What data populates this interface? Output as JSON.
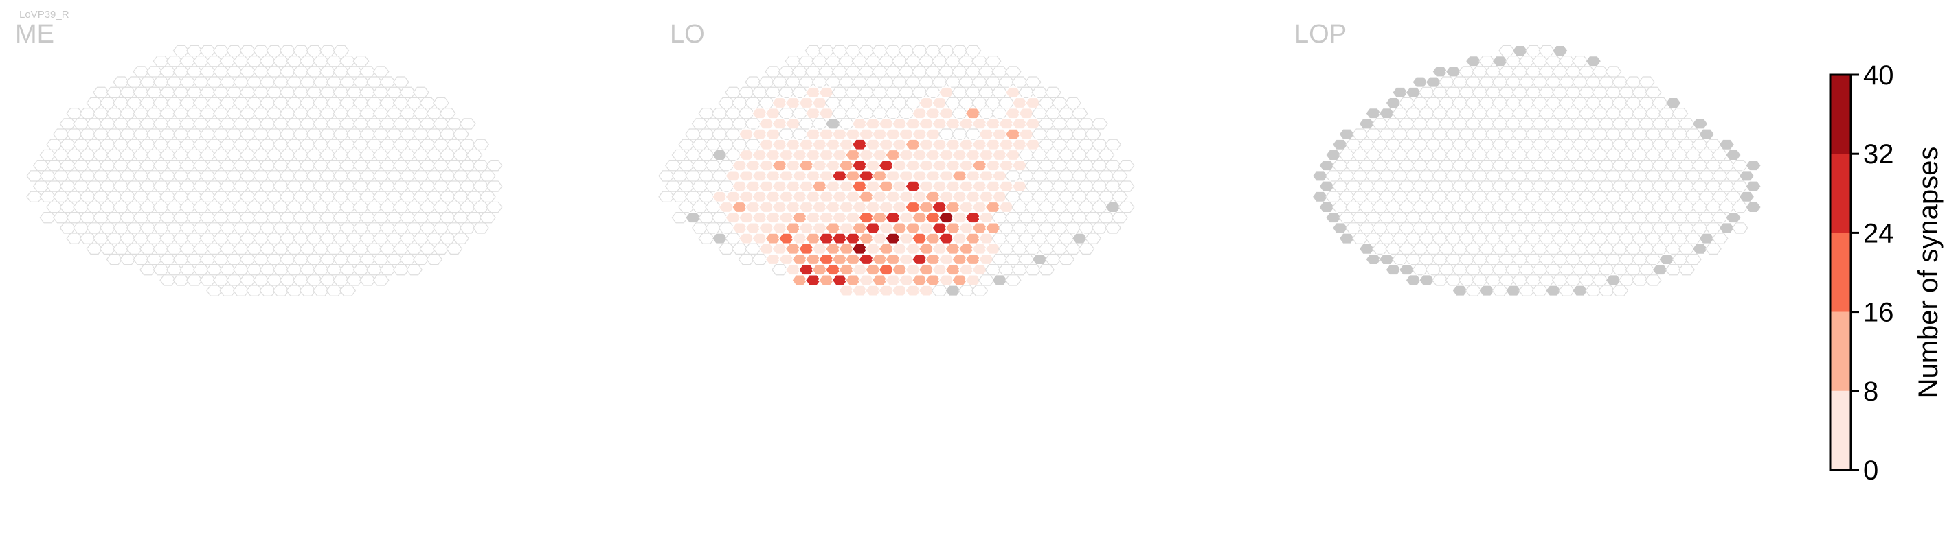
{
  "figure": {
    "neuron_label": "LoVP39_R"
  },
  "chart_data": {
    "type": "heatmap",
    "panels": [
      {
        "title": "ME",
        "rows": [
          {
            "r": 0,
            "start": -6,
            "end": 6
          },
          {
            "r": 1,
            "start": -8,
            "end": 7
          },
          {
            "r": 2,
            "start": -9,
            "end": 9
          },
          {
            "r": 3,
            "start": -11,
            "end": 10
          },
          {
            "r": 4,
            "start": -12,
            "end": 12
          },
          {
            "r": 5,
            "start": -13,
            "end": 13
          },
          {
            "r": 6,
            "start": -14,
            "end": 14
          },
          {
            "r": 7,
            "start": -15,
            "end": 15
          },
          {
            "r": 8,
            "start": -15,
            "end": 15
          },
          {
            "r": 9,
            "start": -16,
            "end": 16
          },
          {
            "r": 10,
            "start": -16,
            "end": 16
          },
          {
            "r": 11,
            "start": -17,
            "end": 17
          },
          {
            "r": 12,
            "start": -17,
            "end": 17
          },
          {
            "r": 13,
            "start": -17,
            "end": 17
          },
          {
            "r": 14,
            "start": -17,
            "end": 17
          },
          {
            "r": 15,
            "start": -16,
            "end": 17
          },
          {
            "r": 16,
            "start": -16,
            "end": 17
          },
          {
            "r": 17,
            "start": -15,
            "end": 16
          },
          {
            "r": 18,
            "start": -14,
            "end": 15
          },
          {
            "r": 19,
            "start": -13,
            "end": 14
          },
          {
            "r": 20,
            "start": -11,
            "end": 13
          },
          {
            "r": 21,
            "start": -9,
            "end": 11
          },
          {
            "r": 22,
            "start": -7,
            "end": 9
          },
          {
            "r": 23,
            "start": -4,
            "end": 6
          }
        ],
        "values": {}
      },
      {
        "title": "LO",
        "rows": [
          {
            "r": 0,
            "start": -6,
            "end": 6
          },
          {
            "r": 1,
            "start": -8,
            "end": 7
          },
          {
            "r": 2,
            "start": -9,
            "end": 9
          },
          {
            "r": 3,
            "start": -11,
            "end": 10
          },
          {
            "r": 4,
            "start": -12,
            "end": 12
          },
          {
            "r": 5,
            "start": -13,
            "end": 13
          },
          {
            "r": 6,
            "start": -14,
            "end": 14
          },
          {
            "r": 7,
            "start": -15,
            "end": 15
          },
          {
            "r": 8,
            "start": -15,
            "end": 15
          },
          {
            "r": 9,
            "start": -16,
            "end": 16
          },
          {
            "r": 10,
            "start": -16,
            "end": 16
          },
          {
            "r": 11,
            "start": -17,
            "end": 17
          },
          {
            "r": 12,
            "start": -17,
            "end": 17
          },
          {
            "r": 13,
            "start": -17,
            "end": 17
          },
          {
            "r": 14,
            "start": -17,
            "end": 17
          },
          {
            "r": 15,
            "start": -16,
            "end": 17
          },
          {
            "r": 16,
            "start": -16,
            "end": 17
          },
          {
            "r": 17,
            "start": -15,
            "end": 16
          },
          {
            "r": 18,
            "start": -14,
            "end": 15
          },
          {
            "r": 19,
            "start": -13,
            "end": 14
          },
          {
            "r": 20,
            "start": -11,
            "end": 13
          },
          {
            "r": 21,
            "start": -9,
            "end": 11
          },
          {
            "r": 22,
            "start": -7,
            "end": 9
          },
          {
            "r": 23,
            "start": -4,
            "end": 6
          }
        ],
        "grey": [
          [
            -1,
            5
          ],
          [
            9,
            -1
          ],
          [
            7,
            -5
          ],
          [
            7,
            -8
          ],
          [
            9,
            0
          ],
          [
            10,
            -13
          ],
          [
            16,
            -15
          ],
          [
            18,
            -13
          ],
          [
            18,
            14
          ],
          [
            22,
            -10
          ],
          [
            23,
            -4
          ],
          [
            23,
            -2
          ],
          [
            23,
            0
          ],
          [
            23,
            2
          ],
          [
            23,
            4
          ],
          [
            22,
            8
          ],
          [
            20,
            11
          ],
          [
            18,
            14
          ],
          [
            15,
            16
          ]
        ],
        "values": {
          "4": {
            "-6": 3,
            "-5": 3,
            "4": 4,
            "9": 4
          },
          "5": {
            "-9": 3,
            "-8": 3,
            "-7": 3,
            "-6": 3,
            "2": 3,
            "3": 3,
            "9": 4,
            "10": 4
          },
          "6": {
            "-10": 4,
            "-9": 4,
            "-6": 4,
            "-5": 3,
            "2": 3,
            "3": 3,
            "4": 4,
            "6": 12,
            "9": 4,
            "10": 4
          },
          "7": {
            "-10": 4,
            "-9": 4,
            "-8": 4,
            "-3": 4,
            "-2": 3,
            "-1": 3,
            "0": 3,
            "1": 3,
            "2": 3,
            "3": 4,
            "4": 4,
            "5": 4,
            "6": 4,
            "7": 4,
            "8": 4,
            "9": 4,
            "10": 4
          },
          "8": {
            "-11": 4,
            "-10": 4,
            "-9": 4,
            "-6": 3,
            "-5": 3,
            "-4": 5,
            "-3": 3,
            "-2": 3,
            "-1": 3,
            "0": 3,
            "1": 3,
            "2": 3,
            "3": 3,
            "7": 4,
            "8": 4,
            "9": 10,
            "10": 4
          },
          "9": {
            "-10": 4,
            "-9": 4,
            "-8": 4,
            "-7": 4,
            "-6": 3,
            "-5": 3,
            "-4": 3,
            "-3": 26,
            "-2": 4,
            "-1": 4,
            "0": 4,
            "1": 12,
            "2": 3,
            "3": 3,
            "4": 3,
            "5": 3,
            "6": 3,
            "7": 4,
            "8": 4,
            "9": 4,
            "10": 4
          },
          "10": {
            "-11": 4,
            "-10": 4,
            "-9": 4,
            "-8": 4,
            "-7": 4,
            "-6": 4,
            "-5": 4,
            "-4": 4,
            "-3": 13,
            "-2": 4,
            "-1": 4,
            "0": 12,
            "1": 4,
            "2": 4,
            "3": 4,
            "4": 4,
            "5": 4,
            "6": 4,
            "7": 4,
            "8": 4,
            "9": 4
          },
          "11": {
            "-12": 4,
            "-11": 4,
            "-10": 4,
            "-9": 10,
            "-8": 4,
            "-7": 13,
            "-6": 4,
            "-5": 4,
            "-4": 12,
            "-3": 26,
            "-2": 4,
            "-1": 26,
            "0": 4,
            "1": 4,
            "2": 4,
            "3": 4,
            "4": 4,
            "5": 4,
            "6": 10,
            "7": 4,
            "8": 4,
            "9": 4
          },
          "12": {
            "-12": 4,
            "-11": 4,
            "-10": 4,
            "-9": 4,
            "-8": 4,
            "-7": 4,
            "-6": 4,
            "-5": 4,
            "-4": 28,
            "-3": 12,
            "-2": 24,
            "-1": 12,
            "0": 4,
            "1": 4,
            "2": 4,
            "3": 4,
            "4": 4,
            "5": 12,
            "6": 4,
            "7": 4,
            "8": 4
          },
          "13": {
            "-12": 4,
            "-11": 4,
            "-10": 4,
            "-9": 4,
            "-8": 4,
            "-7": 4,
            "-6": 13,
            "-5": 4,
            "-4": 4,
            "-3": 20,
            "-2": 4,
            "-1": 13,
            "0": 4,
            "1": 30,
            "2": 4,
            "3": 4,
            "4": 4,
            "5": 4,
            "6": 4,
            "7": 4,
            "8": 4,
            "9": 4
          },
          "14": {
            "-13": 4,
            "-12": 4,
            "-11": 4,
            "-10": 4,
            "-9": 4,
            "-8": 4,
            "-7": 4,
            "-6": 4,
            "-5": 4,
            "-4": 4,
            "-3": 4,
            "-2": 12,
            "-1": 4,
            "0": 4,
            "1": 4,
            "2": 4,
            "3": 12,
            "4": 4,
            "5": 4,
            "6": 4,
            "7": 4,
            "8": 4
          },
          "15": {
            "-13": 4,
            "-12": 10,
            "-11": 4,
            "-10": 4,
            "-9": 4,
            "-8": 4,
            "-7": 4,
            "-6": 4,
            "-5": 4,
            "-4": 4,
            "-3": 4,
            "-2": 4,
            "-1": 4,
            "0": 4,
            "1": 20,
            "2": 12,
            "3": 24,
            "4": 12,
            "5": 4,
            "6": 4,
            "7": 10,
            "8": 4
          },
          "16": {
            "-12": 4,
            "-11": 4,
            "-10": 4,
            "-9": 4,
            "-8": 4,
            "-7": 12,
            "-6": 4,
            "-5": 4,
            "-4": 4,
            "-3": 4,
            "-2": 20,
            "-1": 12,
            "0": 24,
            "1": 4,
            "2": 12,
            "3": 20,
            "4": 36,
            "5": 4,
            "6": 24,
            "7": 4
          },
          "17": {
            "-12": 4,
            "-11": 4,
            "-10": 4,
            "-9": 4,
            "-8": 12,
            "-7": 4,
            "-6": 4,
            "-5": 12,
            "-4": 4,
            "-3": 12,
            "-2": 28,
            "-1": 4,
            "0": 12,
            "1": 12,
            "2": 4,
            "3": 28,
            "4": 12,
            "5": 4,
            "6": 12,
            "7": 10
          },
          "18": {
            "-11": 4,
            "-10": 4,
            "-9": 10,
            "-8": 20,
            "-7": 4,
            "-6": 12,
            "-5": 26,
            "-4": 24,
            "-3": 30,
            "-2": 12,
            "-1": 4,
            "0": 36,
            "1": 4,
            "2": 20,
            "3": 12,
            "4": 26,
            "5": 4,
            "6": 10,
            "7": 4
          },
          "19": {
            "-10": 4,
            "-9": 4,
            "-8": 12,
            "-7": 20,
            "-6": 4,
            "-5": 12,
            "-4": 12,
            "-3": 36,
            "-2": 4,
            "-1": 12,
            "0": 4,
            "1": 4,
            "2": 12,
            "3": 4,
            "4": 12,
            "5": 10,
            "6": 4,
            "7": 4
          },
          "20": {
            "-9": 4,
            "-8": 4,
            "-7": 10,
            "-6": 12,
            "-5": 20,
            "-4": 12,
            "-3": 12,
            "-2": 28,
            "-1": 12,
            "0": 12,
            "1": 4,
            "2": 30,
            "3": 12,
            "4": 4,
            "5": 10,
            "6": 12,
            "7": 4
          },
          "21": {
            "-8": 4,
            "-7": 24,
            "-6": 12,
            "-5": 20,
            "-4": 12,
            "-3": 4,
            "-2": 12,
            "-1": 20,
            "0": 12,
            "1": 4,
            "2": 12,
            "3": 4,
            "4": 12,
            "5": 4,
            "6": 4
          },
          "22": {
            "-7": 10,
            "-6": 26,
            "-5": 12,
            "-4": 24,
            "-3": 12,
            "-2": 4,
            "-1": 12,
            "0": 4,
            "1": 4,
            "2": 10,
            "3": 12,
            "4": 4,
            "5": 10,
            "6": 4
          },
          "23": {
            "-4": 4,
            "-3": 4,
            "-2": 4,
            "-1": 4,
            "0": 4,
            "1": 4,
            "2": 4
          }
        }
      },
      {
        "title": "LOP",
        "rows": [
          {
            "r": 0,
            "start": -2,
            "end": 2
          },
          {
            "r": 1,
            "start": -5,
            "end": 4
          },
          {
            "r": 2,
            "start": -7,
            "end": 6
          },
          {
            "r": 3,
            "start": -9,
            "end": 8
          },
          {
            "r": 4,
            "start": -10,
            "end": 9
          },
          {
            "r": 5,
            "start": -11,
            "end": 10
          },
          {
            "r": 6,
            "start": -12,
            "end": 11
          },
          {
            "r": 7,
            "start": -13,
            "end": 12
          },
          {
            "r": 8,
            "start": -14,
            "end": 13
          },
          {
            "r": 9,
            "start": -15,
            "end": 14
          },
          {
            "r": 10,
            "start": -15,
            "end": 15
          },
          {
            "r": 11,
            "start": -16,
            "end": 16
          },
          {
            "r": 12,
            "start": -16,
            "end": 16
          },
          {
            "r": 13,
            "start": -16,
            "end": 16
          },
          {
            "r": 14,
            "start": -16,
            "end": 16
          },
          {
            "r": 15,
            "start": -16,
            "end": 16
          },
          {
            "r": 16,
            "start": -15,
            "end": 15
          },
          {
            "r": 17,
            "start": -15,
            "end": 15
          },
          {
            "r": 18,
            "start": -14,
            "end": 14
          },
          {
            "r": 19,
            "start": -13,
            "end": 13
          },
          {
            "r": 20,
            "start": -12,
            "end": 12
          },
          {
            "r": 21,
            "start": -11,
            "end": 11
          },
          {
            "r": 22,
            "start": -9,
            "end": 9
          },
          {
            "r": 23,
            "start": -6,
            "end": 6
          }
        ],
        "grey": [
          [
            0,
            -1
          ],
          [
            0,
            2
          ],
          [
            1,
            -5
          ],
          [
            1,
            4
          ],
          [
            2,
            -7
          ],
          [
            3,
            -9
          ],
          [
            4,
            -10
          ],
          [
            5,
            -11
          ],
          [
            6,
            -12
          ],
          [
            7,
            -13
          ],
          [
            8,
            -14
          ],
          [
            9,
            -15
          ],
          [
            10,
            -15
          ],
          [
            11,
            -16
          ],
          [
            12,
            -16
          ],
          [
            13,
            -16
          ],
          [
            14,
            -16
          ],
          [
            15,
            -16
          ],
          [
            16,
            -15
          ],
          [
            17,
            -15
          ],
          [
            18,
            -14
          ],
          [
            19,
            -13
          ],
          [
            20,
            -12
          ],
          [
            21,
            -11
          ],
          [
            22,
            -9
          ],
          [
            23,
            -6
          ],
          [
            23,
            -4
          ],
          [
            23,
            -2
          ],
          [
            23,
            1
          ],
          [
            23,
            3
          ],
          [
            22,
            6
          ],
          [
            21,
            9
          ],
          [
            20,
            10
          ],
          [
            19,
            12
          ],
          [
            18,
            13
          ],
          [
            17,
            14
          ],
          [
            16,
            15
          ],
          [
            15,
            16
          ],
          [
            14,
            16
          ],
          [
            13,
            16
          ],
          [
            12,
            16
          ],
          [
            11,
            16
          ],
          [
            10,
            15
          ],
          [
            9,
            14
          ],
          [
            8,
            13
          ],
          [
            7,
            12
          ],
          [
            5,
            10
          ],
          [
            2,
            -6
          ],
          [
            3,
            -8
          ],
          [
            1,
            -3
          ],
          [
            20,
            -11
          ],
          [
            21,
            -10
          ],
          [
            22,
            -8
          ],
          [
            4,
            -9
          ],
          [
            6,
            -11
          ]
        ],
        "values": {}
      }
    ],
    "colorbar": {
      "label": "Number of synapses",
      "ticks": [
        0,
        8,
        16,
        24,
        32,
        40
      ],
      "min": 0,
      "max": 40,
      "bins": [
        {
          "from": 0,
          "to": 8,
          "color": "#fde7df"
        },
        {
          "from": 8,
          "to": 16,
          "color": "#fcb296"
        },
        {
          "from": 16,
          "to": 24,
          "color": "#f86c4e"
        },
        {
          "from": 24,
          "to": 32,
          "color": "#d42a28"
        },
        {
          "from": 32,
          "to": 40,
          "color": "#a10f15"
        }
      ]
    },
    "colors": {
      "empty_fill": "#ffffff",
      "empty_stroke": "#dedede",
      "grey_fill": "#c8c8c8",
      "title": "#c8c8c8",
      "value_stroke": "#ffffff"
    }
  }
}
